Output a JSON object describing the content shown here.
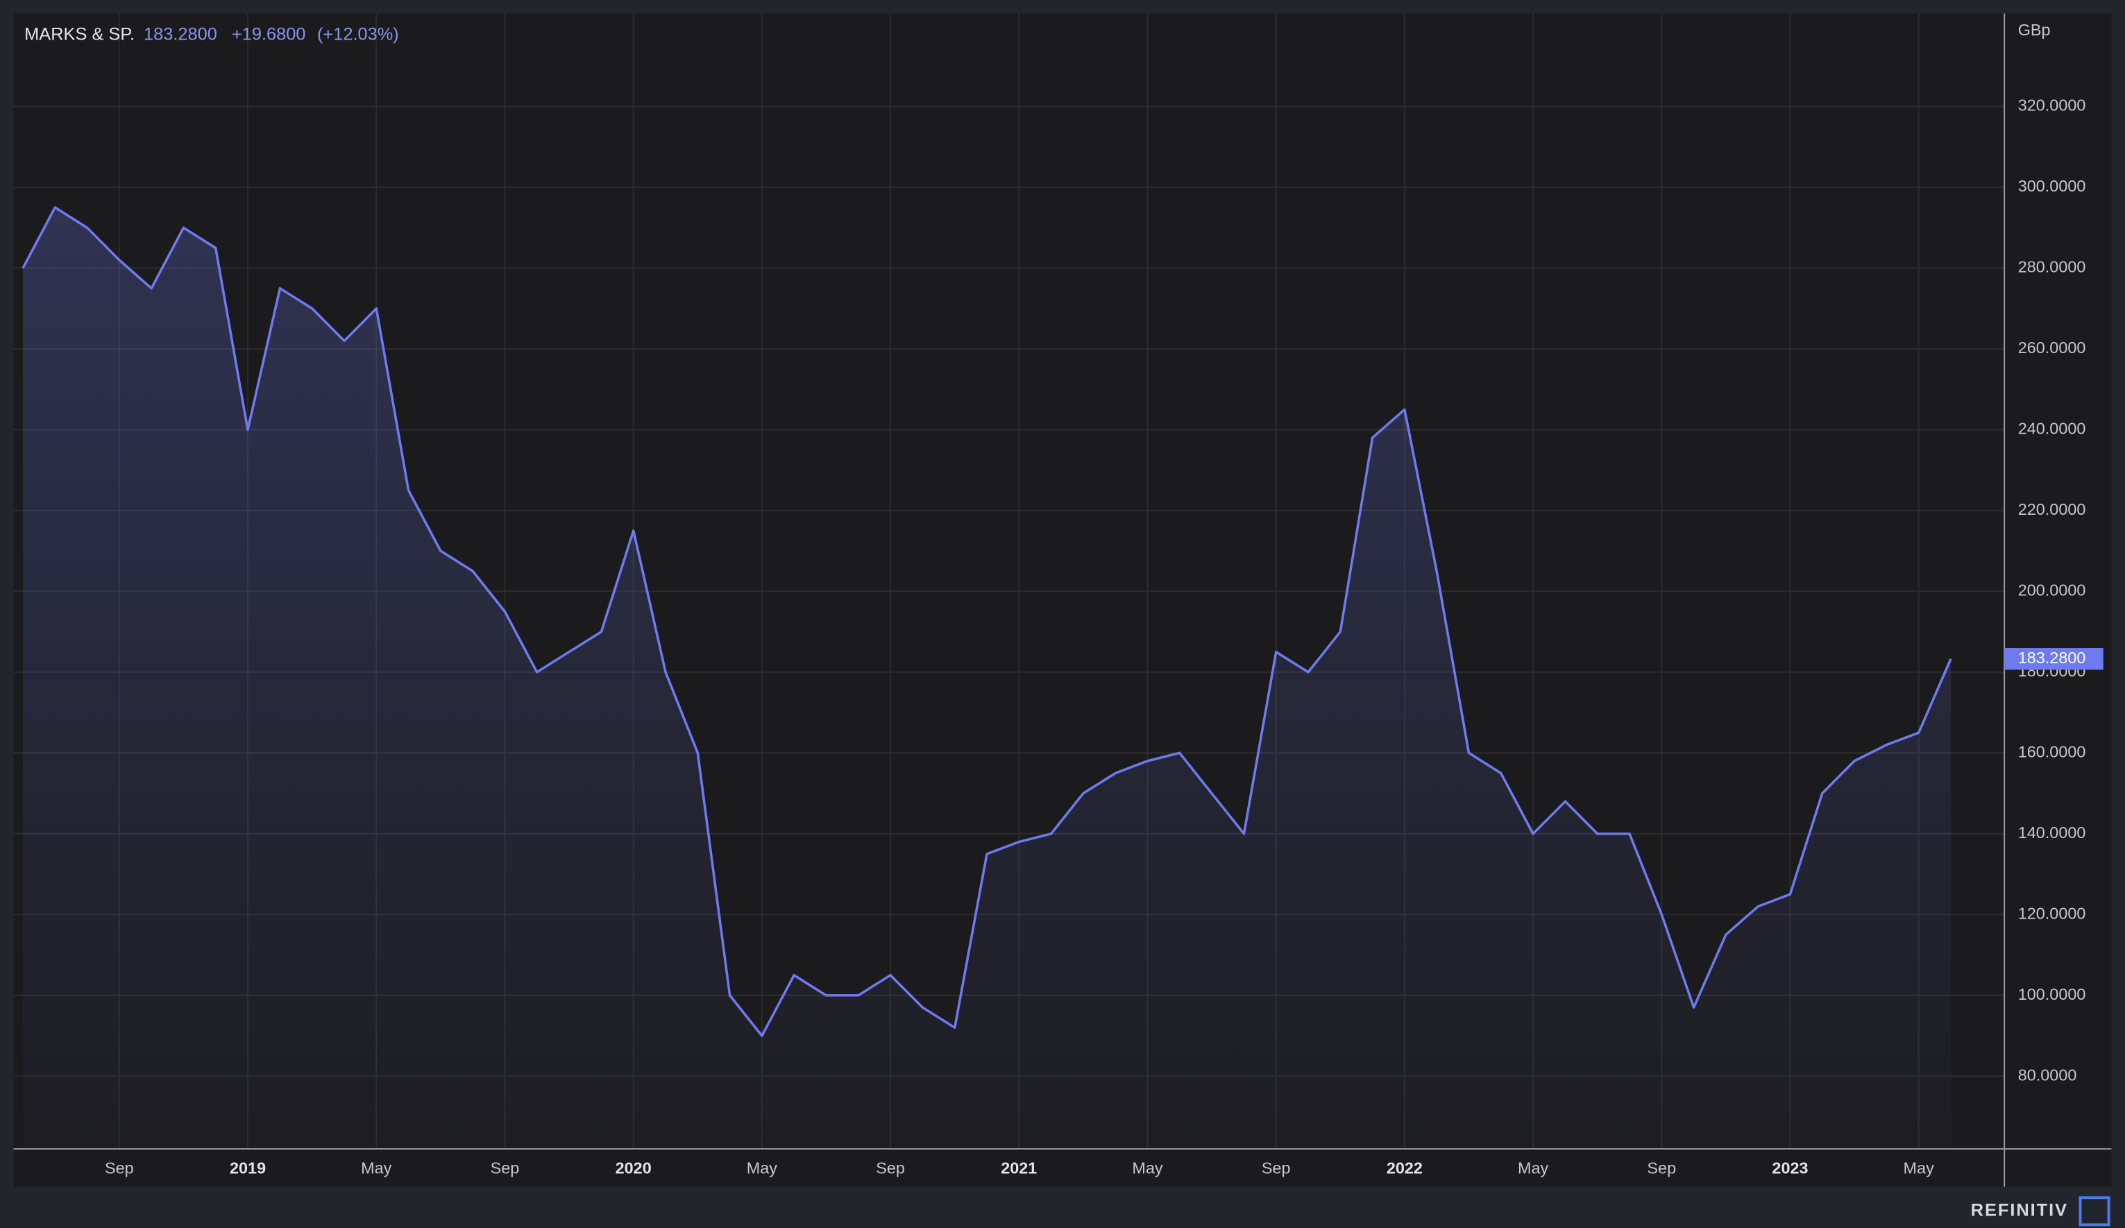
{
  "chart_data": {
    "type": "line",
    "title": "MARKS & SP.",
    "last_price": {
      "value": 183.28,
      "label": "183.2800"
    },
    "change": {
      "value": 19.68,
      "label": "+19.6800"
    },
    "change_pct": {
      "value": 12.03,
      "label": "(+12.03%)"
    },
    "unit": "GBp",
    "brand": "REFINITIV",
    "color": "#6e7bf0",
    "grid": true,
    "x": [
      "2018-06",
      "2018-07",
      "2018-08",
      "2018-09",
      "2018-10",
      "2018-11",
      "2018-12",
      "2019-01",
      "2019-02",
      "2019-03",
      "2019-04",
      "2019-05",
      "2019-06",
      "2019-07",
      "2019-08",
      "2019-09",
      "2019-10",
      "2019-11",
      "2019-12",
      "2020-01",
      "2020-02",
      "2020-03",
      "2020-04",
      "2020-05",
      "2020-06",
      "2020-07",
      "2020-08",
      "2020-09",
      "2020-10",
      "2020-11",
      "2020-12",
      "2021-01",
      "2021-02",
      "2021-03",
      "2021-04",
      "2021-05",
      "2021-06",
      "2021-07",
      "2021-08",
      "2021-09",
      "2021-10",
      "2021-11",
      "2021-12",
      "2022-01",
      "2022-02",
      "2022-03",
      "2022-04",
      "2022-05",
      "2022-06",
      "2022-07",
      "2022-08",
      "2022-09",
      "2022-10",
      "2022-11",
      "2022-12",
      "2023-01",
      "2023-02",
      "2023-03",
      "2023-04",
      "2023-05",
      "2023-06"
    ],
    "values": [
      280,
      295,
      290,
      282,
      275,
      290,
      285,
      240,
      275,
      270,
      262,
      270,
      225,
      210,
      205,
      195,
      180,
      185,
      190,
      215,
      180,
      160,
      100,
      90,
      105,
      100,
      100,
      105,
      97,
      92,
      135,
      138,
      140,
      150,
      155,
      158,
      160,
      150,
      140,
      185,
      180,
      190,
      238,
      245,
      205,
      160,
      155,
      140,
      148,
      140,
      140,
      120,
      97,
      115,
      122,
      125,
      150,
      158,
      162,
      165,
      183.28
    ],
    "ylim": [
      62,
      343
    ],
    "yticks": [
      {
        "value": 80,
        "label": "80.0000"
      },
      {
        "value": 100,
        "label": "100.0000"
      },
      {
        "value": 120,
        "label": "120.0000"
      },
      {
        "value": 140,
        "label": "140.0000"
      },
      {
        "value": 160,
        "label": "160.0000"
      },
      {
        "value": 180,
        "label": "180.0000"
      },
      {
        "value": 200,
        "label": "200.0000"
      },
      {
        "value": 220,
        "label": "220.0000"
      },
      {
        "value": 240,
        "label": "240.0000"
      },
      {
        "value": 260,
        "label": "260.0000"
      },
      {
        "value": 280,
        "label": "280.0000"
      },
      {
        "value": 300,
        "label": "300.0000"
      },
      {
        "value": 320,
        "label": "320.0000"
      }
    ],
    "xticks": [
      {
        "value": "2018-09",
        "label": "Sep"
      },
      {
        "value": "2019-01",
        "label": "2019"
      },
      {
        "value": "2019-05",
        "label": "May"
      },
      {
        "value": "2019-09",
        "label": "Sep"
      },
      {
        "value": "2020-01",
        "label": "2020"
      },
      {
        "value": "2020-05",
        "label": "May"
      },
      {
        "value": "2020-09",
        "label": "Sep"
      },
      {
        "value": "2021-01",
        "label": "2021"
      },
      {
        "value": "2021-05",
        "label": "May"
      },
      {
        "value": "2021-09",
        "label": "Sep"
      },
      {
        "value": "2022-01",
        "label": "2022"
      },
      {
        "value": "2022-05",
        "label": "May"
      },
      {
        "value": "2022-09",
        "label": "Sep"
      },
      {
        "value": "2023-01",
        "label": "2023"
      },
      {
        "value": "2023-05",
        "label": "May"
      }
    ]
  }
}
